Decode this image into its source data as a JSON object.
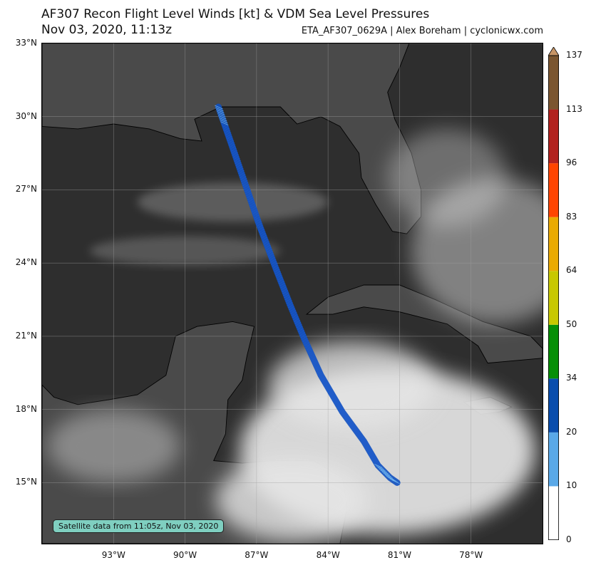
{
  "header": {
    "title": "AF307 Recon Flight Level Winds [kt] & VDM Sea Level Pressures",
    "subtitle": "Nov 03, 2020, 11:13z",
    "credit": "ETA_AF307_0629A | Alex Boreham | cyclonicwx.com"
  },
  "map": {
    "lon_range": [
      -96,
      -75
    ],
    "lat_range": [
      12.5,
      33
    ],
    "lat_ticks": [
      {
        "value": 33,
        "label": "33°N"
      },
      {
        "value": 30,
        "label": "30°N"
      },
      {
        "value": 27,
        "label": "27°N"
      },
      {
        "value": 24,
        "label": "24°N"
      },
      {
        "value": 21,
        "label": "21°N"
      },
      {
        "value": 18,
        "label": "18°N"
      },
      {
        "value": 15,
        "label": "15°N"
      }
    ],
    "lon_ticks": [
      {
        "value": -93,
        "label": "93°W"
      },
      {
        "value": -90,
        "label": "90°W"
      },
      {
        "value": -87,
        "label": "87°W"
      },
      {
        "value": -84,
        "label": "84°W"
      },
      {
        "value": -81,
        "label": "81°W"
      },
      {
        "value": -78,
        "label": "78°W"
      }
    ],
    "satellite_note": "Satellite data from 11:05z, Nov 03, 2020",
    "land_color": "#4a4a4a",
    "water_color": "#2e2e2e",
    "cloud_color": "#e6e6e6"
  },
  "flight_track": [
    {
      "lon": -88.6,
      "lat": 30.4
    },
    {
      "lon": -88.1,
      "lat": 29.0
    },
    {
      "lon": -87.5,
      "lat": 27.3
    },
    {
      "lon": -86.9,
      "lat": 25.6
    },
    {
      "lon": -86.2,
      "lat": 23.8
    },
    {
      "lon": -85.6,
      "lat": 22.3
    },
    {
      "lon": -85.0,
      "lat": 20.9
    },
    {
      "lon": -84.3,
      "lat": 19.4
    },
    {
      "lon": -83.4,
      "lat": 17.9
    },
    {
      "lon": -82.5,
      "lat": 16.7
    },
    {
      "lon": -81.9,
      "lat": 15.7
    },
    {
      "lon": -81.4,
      "lat": 15.2
    },
    {
      "lon": -81.1,
      "lat": 15.0
    }
  ],
  "colorbar": {
    "units": "kt",
    "bounds": [
      0,
      10,
      20,
      34,
      50,
      64,
      83,
      96,
      113,
      137
    ],
    "colors": [
      "#ffffff",
      "#5aa9e8",
      "#0b4ead",
      "#078f07",
      "#c8c800",
      "#eaaa00",
      "#ff4500",
      "#b2221f",
      "#7b5630",
      "#c79566"
    ],
    "labels": [
      "0",
      "10",
      "20",
      "34",
      "50",
      "64",
      "83",
      "96",
      "113",
      "137"
    ]
  }
}
